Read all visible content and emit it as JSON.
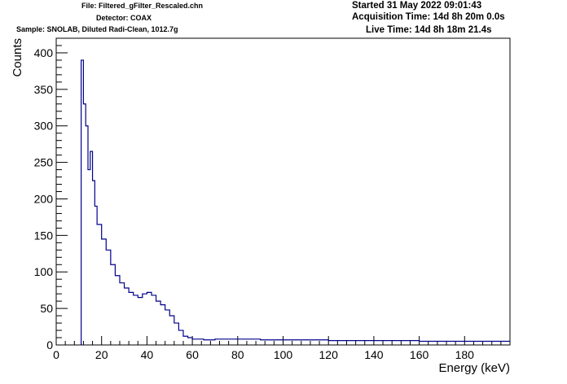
{
  "header": {
    "file": "File: Filtered_gFilter_Rescaled.chn",
    "detector": "Detector: COAX",
    "sample": "Sample: SNOLAB, Diluted Radi-Clean, 1012.7g",
    "started": "Started 31 May 2022 09:01:43",
    "acquisition": "Acquisition Time: 14d 8h 20m 0.0s",
    "live": "Live Time: 14d 8h 18m 21.4s"
  },
  "colors": {
    "line": "#00008b",
    "axis": "#000000",
    "background": "#ffffff"
  },
  "chart_data": {
    "type": "line",
    "style": "step histogram",
    "title": "",
    "xlabel": "Energy (keV)",
    "ylabel": "Counts",
    "xlim": [
      0,
      200
    ],
    "ylim": [
      0,
      420
    ],
    "x_ticks": [
      "0",
      "20",
      "40",
      "60",
      "80",
      "100",
      "120",
      "140",
      "160",
      "180"
    ],
    "y_ticks": [
      "0",
      "50",
      "100",
      "150",
      "200",
      "250",
      "300",
      "350",
      "400"
    ],
    "grid": false,
    "legend": "none",
    "series": [
      {
        "x": [
          11,
          12,
          13,
          14,
          15,
          16,
          17,
          18,
          20,
          22,
          24,
          26,
          28,
          30,
          32,
          34,
          36,
          38,
          40,
          42,
          44,
          46,
          48,
          50,
          52,
          54,
          56,
          58,
          60,
          65,
          70,
          80,
          90,
          100,
          120,
          140,
          160,
          180,
          200
        ],
        "y": [
          390,
          330,
          300,
          240,
          265,
          225,
          190,
          165,
          145,
          130,
          110,
          95,
          85,
          78,
          72,
          68,
          65,
          70,
          72,
          68,
          60,
          55,
          48,
          40,
          30,
          20,
          12,
          10,
          8,
          7,
          8,
          8,
          7,
          7,
          6,
          6,
          5,
          5,
          5
        ]
      }
    ]
  }
}
